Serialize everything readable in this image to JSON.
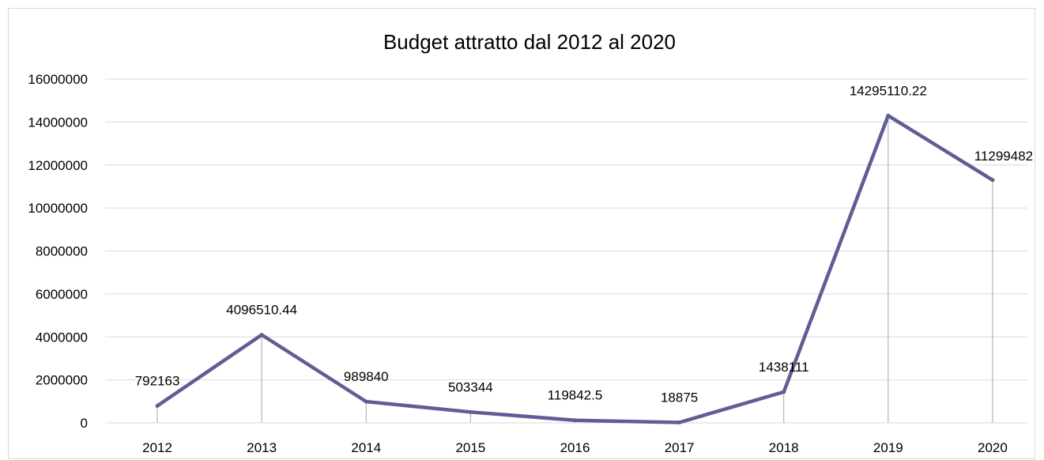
{
  "chart_data": {
    "type": "line",
    "title": "Budget attratto dal 2012 al 2020",
    "xlabel": "",
    "ylabel": "",
    "categories": [
      "2012",
      "2013",
      "2014",
      "2015",
      "2016",
      "2017",
      "2018",
      "2019",
      "2020"
    ],
    "series": [
      {
        "values": [
          792163,
          4096510.44,
          989840,
          503344,
          119842.5,
          18875,
          1438111,
          14295110.22,
          11299482
        ],
        "data_labels": [
          "792163",
          "4096510.44",
          "989840",
          "503344",
          "119842.5",
          "18875",
          "1438111",
          "14295110.22",
          "11299482"
        ],
        "color": "#5e5e94"
      }
    ],
    "ylim": [
      0,
      16000000
    ],
    "yticks": [
      0,
      2000000,
      4000000,
      6000000,
      8000000,
      10000000,
      12000000,
      14000000,
      16000000
    ],
    "ytick_labels": [
      "0",
      "2000000",
      "4000000",
      "6000000",
      "8000000",
      "10000000",
      "12000000",
      "14000000",
      "16000000"
    ],
    "grid": true,
    "drop_lines": true,
    "legend": "none",
    "colors": {
      "line": "#5e5e94",
      "grid": "#d9d9d9",
      "drop_line": "#a6a6a6",
      "text": "#000000"
    }
  }
}
